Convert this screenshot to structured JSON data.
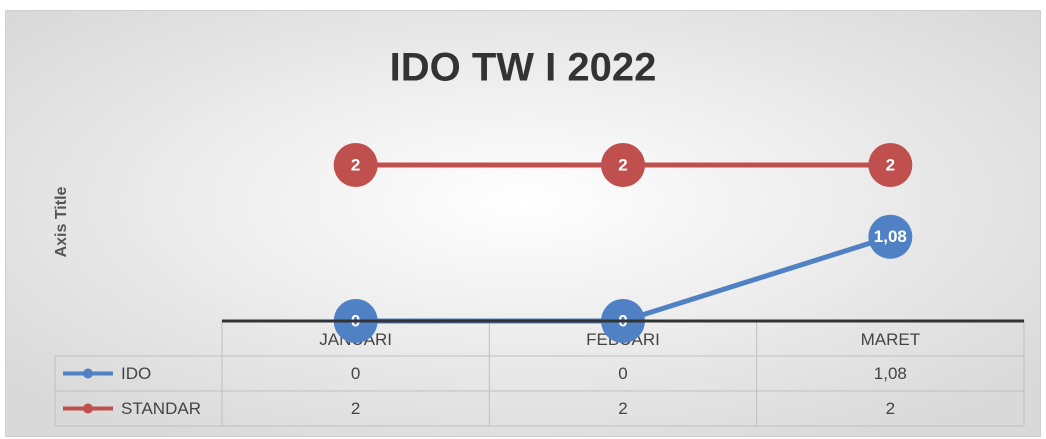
{
  "chart_data": {
    "type": "line",
    "title": "IDO TW I 2022",
    "y_label": "Axis Title",
    "categories": [
      "JANUARI",
      "FEBUARI",
      "MARET"
    ],
    "series": [
      {
        "name": "IDO",
        "color": "#4f81c4",
        "values": [
          0,
          0,
          1.08
        ],
        "value_labels": [
          "0",
          "0",
          "1,08"
        ]
      },
      {
        "name": "STANDAR",
        "color": "#c0504d",
        "values": [
          2,
          2,
          2
        ]
      }
    ],
    "ylim": [
      0,
      2.5
    ],
    "data_table": true
  }
}
